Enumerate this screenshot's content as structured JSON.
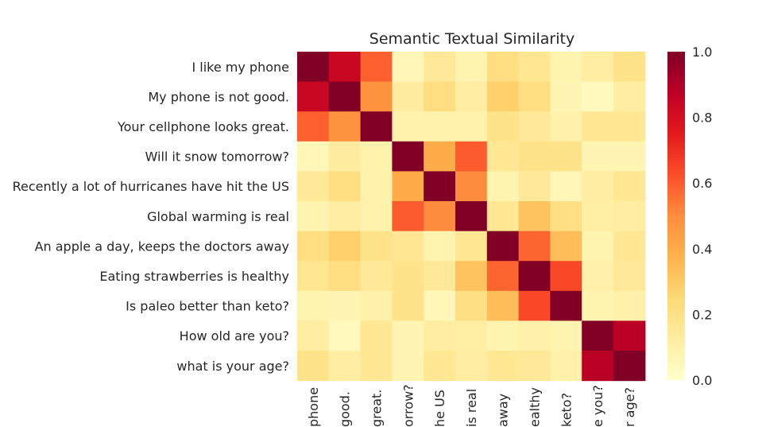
{
  "chart_data": {
    "type": "heatmap",
    "title": "Semantic Textual Similarity",
    "labels": [
      "I like my phone",
      "My phone is not good.",
      "Your cellphone looks great.",
      "Will it snow tomorrow?",
      "Recently a lot of hurricanes have hit the US",
      "Global warming is real",
      "An apple a day, keeps the doctors away",
      "Eating strawberries is healthy",
      "Is paleo better than keto?",
      "How old are you?",
      "what is your age?"
    ],
    "x_tick_labels_visible": [
      "phone",
      "good.",
      "great.",
      "orrow?",
      "he US",
      "is real",
      "away",
      "ealthy",
      "keto?",
      "e you?",
      "r age?"
    ],
    "matrix": [
      [
        1.0,
        0.84,
        0.59,
        0.06,
        0.15,
        0.08,
        0.22,
        0.17,
        0.08,
        0.12,
        0.19
      ],
      [
        0.84,
        1.0,
        0.48,
        0.13,
        0.22,
        0.12,
        0.28,
        0.22,
        0.07,
        0.04,
        0.12
      ],
      [
        0.59,
        0.48,
        1.0,
        0.09,
        0.09,
        0.09,
        0.19,
        0.15,
        0.1,
        0.16,
        0.16
      ],
      [
        0.06,
        0.13,
        0.09,
        1.0,
        0.4,
        0.6,
        0.16,
        0.19,
        0.19,
        0.07,
        0.07
      ],
      [
        0.15,
        0.22,
        0.09,
        0.4,
        1.0,
        0.5,
        0.08,
        0.15,
        0.06,
        0.12,
        0.16
      ],
      [
        0.08,
        0.12,
        0.09,
        0.6,
        0.5,
        1.0,
        0.16,
        0.32,
        0.21,
        0.11,
        0.12
      ],
      [
        0.22,
        0.28,
        0.19,
        0.16,
        0.08,
        0.16,
        1.0,
        0.58,
        0.34,
        0.08,
        0.16
      ],
      [
        0.17,
        0.22,
        0.15,
        0.19,
        0.15,
        0.32,
        0.58,
        1.0,
        0.64,
        0.1,
        0.15
      ],
      [
        0.08,
        0.07,
        0.1,
        0.19,
        0.06,
        0.21,
        0.34,
        0.64,
        1.0,
        0.08,
        0.1
      ],
      [
        0.12,
        0.04,
        0.16,
        0.07,
        0.12,
        0.11,
        0.08,
        0.1,
        0.08,
        1.0,
        0.88
      ],
      [
        0.19,
        0.12,
        0.16,
        0.07,
        0.16,
        0.12,
        0.16,
        0.15,
        0.1,
        0.88,
        1.0
      ]
    ],
    "vmin": 0.0,
    "vmax": 1.0,
    "colormap": "YlOrRd",
    "colormap_stops": [
      "#ffffcc",
      "#ffeda0",
      "#fed976",
      "#feb24c",
      "#fd8d3c",
      "#fc4e2a",
      "#e31a1c",
      "#bd0026",
      "#800026"
    ],
    "colorbar_ticks": [
      "0.0",
      "0.2",
      "0.4",
      "0.6",
      "0.8",
      "1.0"
    ],
    "grid": false
  }
}
